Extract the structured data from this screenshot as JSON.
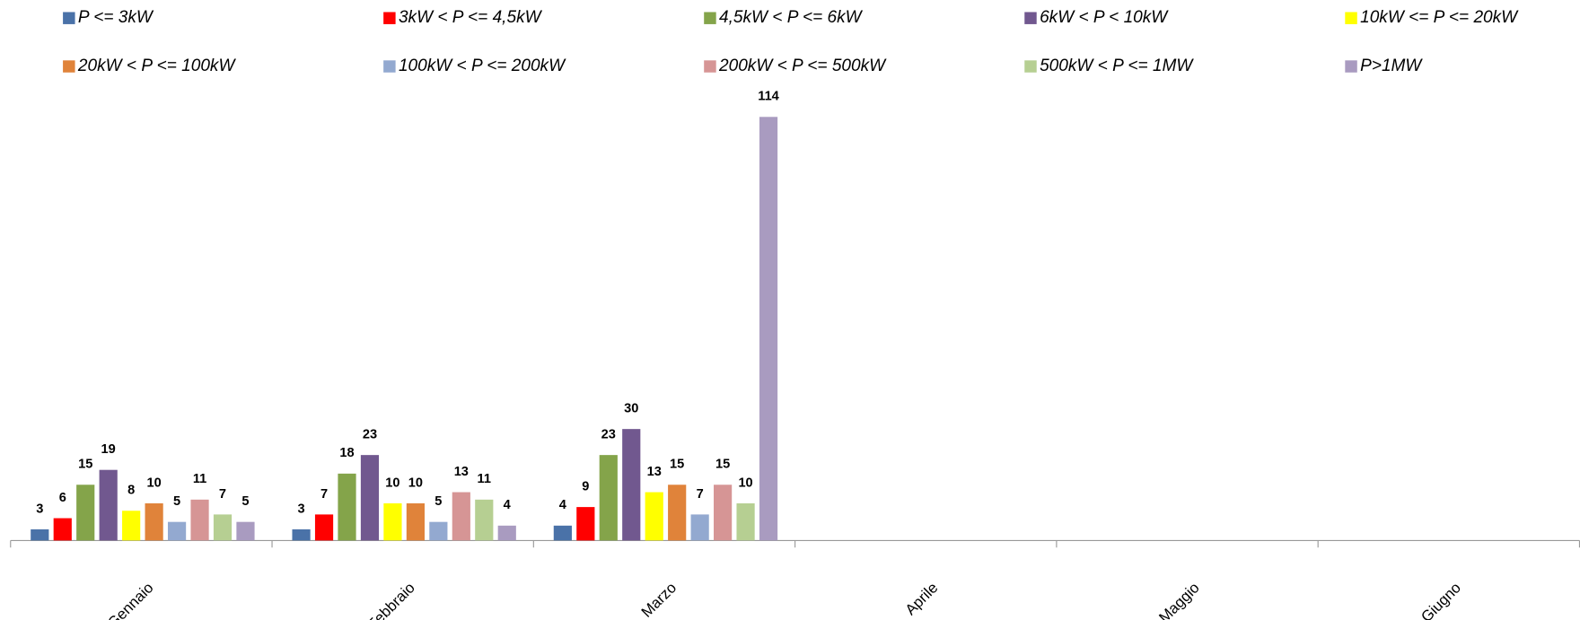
{
  "chart_data": {
    "type": "bar",
    "categories": [
      "Gennaio",
      "Febbraio",
      "Marzo",
      "Aprile",
      "Maggio",
      "Giugno"
    ],
    "ylim": [
      0,
      120
    ],
    "legend": "top",
    "series": [
      {
        "name": "P <= 3kW",
        "color": "#4a72a8",
        "values": [
          3,
          3,
          4,
          null,
          null,
          null
        ]
      },
      {
        "name": "3kW < P <= 4,5kW",
        "color": "#ff0000",
        "values": [
          6,
          7,
          9,
          null,
          null,
          null
        ]
      },
      {
        "name": "4,5kW < P <= 6kW",
        "color": "#84a44a",
        "values": [
          15,
          18,
          23,
          null,
          null,
          null
        ]
      },
      {
        "name": "6kW < P < 10kW",
        "color": "#71588f",
        "values": [
          19,
          23,
          30,
          null,
          null,
          null
        ]
      },
      {
        "name": "10kW <= P <= 20kW",
        "color": "#ffff00",
        "values": [
          8,
          10,
          13,
          null,
          null,
          null
        ]
      },
      {
        "name": "20kW < P <= 100kW",
        "color": "#e0833a",
        "values": [
          10,
          10,
          15,
          null,
          null,
          null
        ]
      },
      {
        "name": "100kW < P <= 200kW",
        "color": "#93a9d0",
        "values": [
          5,
          5,
          7,
          null,
          null,
          null
        ]
      },
      {
        "name": "200kW < P <= 500kW",
        "color": "#d69595",
        "values": [
          11,
          13,
          15,
          null,
          null,
          null
        ]
      },
      {
        "name": "500kW < P <= 1MW",
        "color": "#b6cf92",
        "values": [
          7,
          11,
          10,
          null,
          null,
          null
        ]
      },
      {
        "name": "P>1MW",
        "color": "#a99bc0",
        "values": [
          5,
          4,
          114,
          null,
          null,
          null
        ]
      }
    ]
  }
}
